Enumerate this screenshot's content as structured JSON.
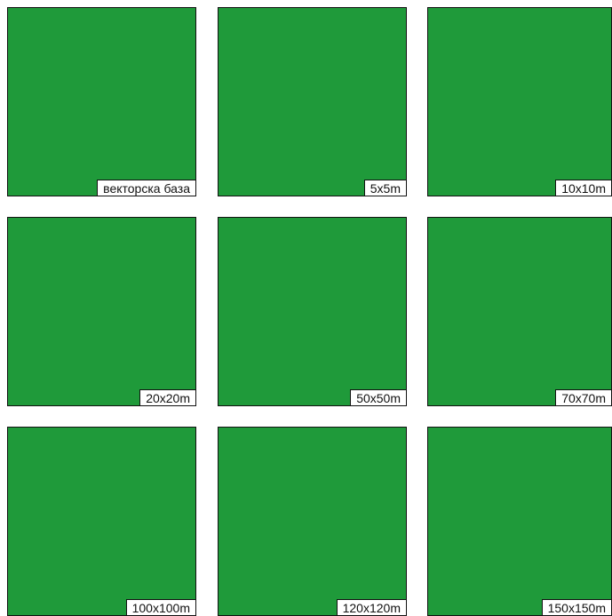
{
  "colors": {
    "forest_dark": "#1f9a3a",
    "forest_light": "#9fdc6a",
    "built": "#4a4f4e",
    "border": "#111111",
    "label_bg": "#ffffff"
  },
  "panels": [
    {
      "label": "векторска база",
      "type": "vector",
      "grid": 0
    },
    {
      "label": "5x5m",
      "type": "vector",
      "grid": 0
    },
    {
      "label": "10x10m",
      "type": "raster",
      "grid": 70
    },
    {
      "label": "20x20m",
      "type": "raster",
      "grid": 40
    },
    {
      "label": "50x50m",
      "type": "raster",
      "grid": 20
    },
    {
      "label": "70x70m",
      "type": "raster",
      "grid": 14
    },
    {
      "label": "100x100m",
      "type": "raster",
      "grid": 10
    },
    {
      "label": "120x120m",
      "type": "raster",
      "grid": 8
    },
    {
      "label": "150x150m",
      "type": "raster",
      "grid": 6
    }
  ]
}
